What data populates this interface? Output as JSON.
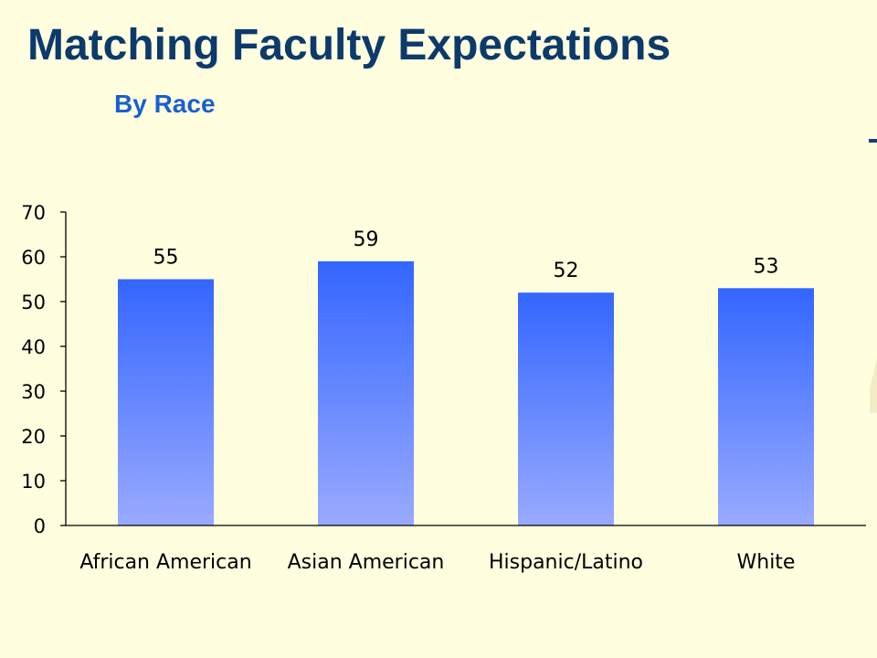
{
  "slide": {
    "title": "Matching Faculty Expectations",
    "subtitle": "By Race"
  },
  "colors": {
    "background": "#ffffe0",
    "title": "#0c3a6b",
    "subtitle": "#1a5fd0",
    "bar_top": "#3366ff",
    "bar_bottom": "#99aaff"
  },
  "chart_data": {
    "type": "bar",
    "title": "",
    "xlabel": "",
    "ylabel": "",
    "categories": [
      "African American",
      "Asian American",
      "Hispanic/Latino",
      "White"
    ],
    "values": [
      55,
      59,
      52,
      53
    ],
    "data_labels": [
      "55",
      "59",
      "52",
      "53"
    ],
    "ylim": [
      0,
      70
    ],
    "yticks": [
      0,
      10,
      20,
      30,
      40,
      50,
      60,
      70
    ],
    "grid": false,
    "legend": "none"
  }
}
